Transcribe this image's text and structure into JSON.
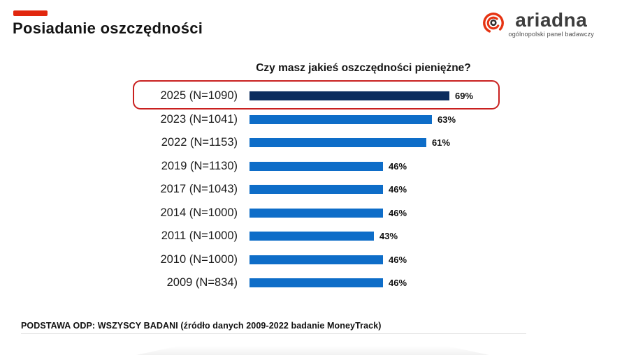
{
  "header": {
    "title": "Posiadanie oszczędności"
  },
  "logo": {
    "brand": "ariadna",
    "tagline": "ogólnopolski panel badawczy",
    "icon": "spiral-at-icon"
  },
  "colors": {
    "accent_red": "#e1270e",
    "highlight_border": "#c9201f",
    "bar_blue": "#0e6dc8",
    "bar_navy": "#0d2d5e",
    "text_dark": "#141414"
  },
  "chart_data": {
    "type": "bar",
    "orientation": "horizontal",
    "title": "Czy masz jakieś oszczędności pieniężne?",
    "categories": [
      "2025 (N=1090)",
      "2023 (N=1041)",
      "2022 (N=1153)",
      "2019 (N=1130)",
      "2017 (N=1043)",
      "2014 (N=1000)",
      "2011 (N=1000)",
      "2010 (N=1000)",
      "2009 (N=834)"
    ],
    "values": [
      69,
      63,
      61,
      46,
      46,
      46,
      43,
      46,
      46
    ],
    "value_labels": [
      "69%",
      "63%",
      "61%",
      "46%",
      "46%",
      "46%",
      "43%",
      "46%",
      "46%"
    ],
    "unit": "%",
    "xlim": [
      0,
      100
    ],
    "grid": false,
    "legend": null,
    "highlighted_index": 0,
    "highlight_style": "red-rounded-outline"
  },
  "footer": {
    "note": "PODSTAWA ODP: WSZYSCY BADANI  (źródło danych 2009-2022 badanie MoneyTrack)"
  }
}
